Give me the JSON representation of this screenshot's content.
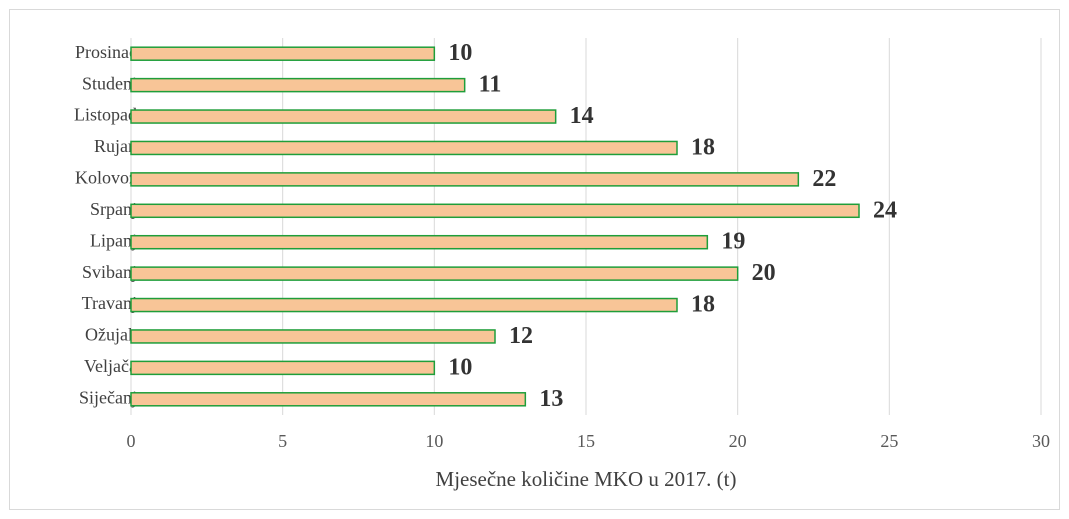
{
  "chart_data": {
    "type": "barh",
    "x_label": "Mjesečne količine MKO u 2017. (t)",
    "categories": [
      "Siječanj",
      "Veljača",
      "Ožujak",
      "Travanj",
      "Svibanj",
      "Lipanj",
      "Srpanj",
      "Kolovoz",
      "Rujan",
      "Listopad",
      "Studeni",
      "Prosinac"
    ],
    "values": [
      13,
      10,
      12,
      18,
      20,
      19,
      24,
      22,
      18,
      14,
      11,
      10
    ],
    "color": "#f8c597",
    "edge_color": "#1f9e3a",
    "xlim": [
      0,
      30
    ],
    "xticks": [
      0,
      5,
      10,
      15,
      20,
      25,
      30
    ],
    "grid": true
  }
}
